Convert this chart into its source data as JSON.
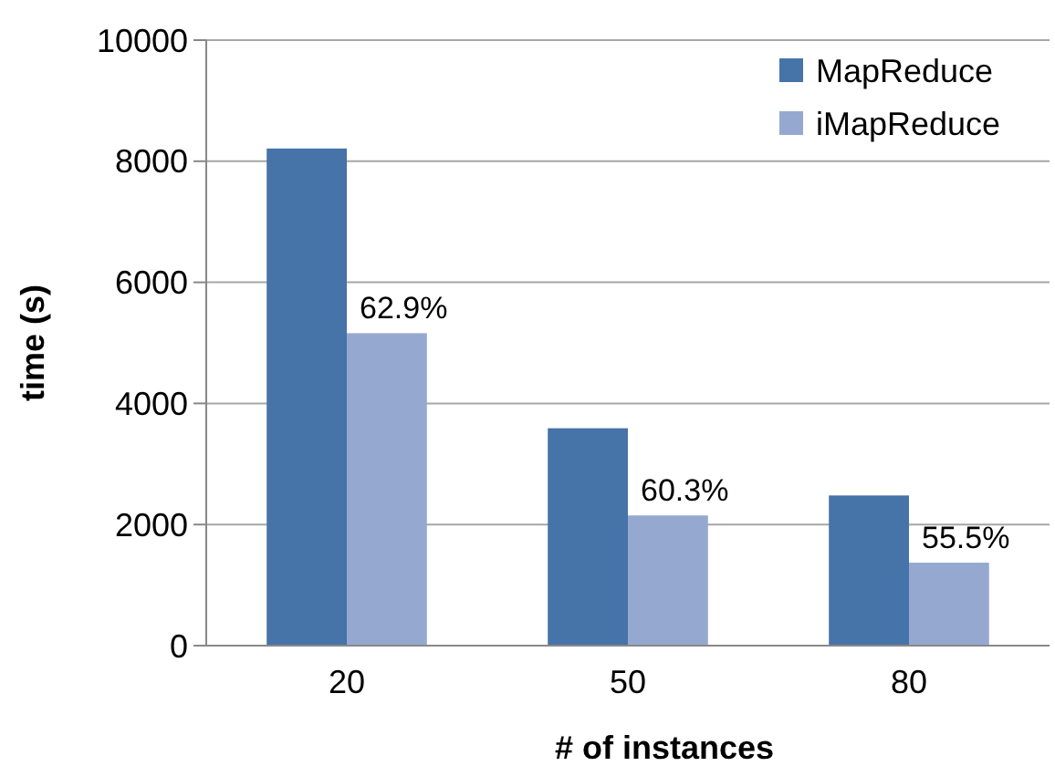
{
  "chart_data": {
    "type": "bar",
    "xlabel": "# of instances",
    "ylabel": "time (s)",
    "categories": [
      "20",
      "50",
      "80"
    ],
    "series": [
      {
        "name": "MapReduce",
        "color": "#4673a8",
        "values": [
          8210,
          3590,
          2480
        ]
      },
      {
        "name": "iMapReduce",
        "color": "#95a9d0",
        "values": [
          5160,
          2150,
          1370
        ]
      }
    ],
    "annotations": [
      {
        "text": "62.9%",
        "x": "20",
        "y": 5160
      },
      {
        "text": "60.3%",
        "x": "50",
        "y": 2150
      },
      {
        "text": "55.5%",
        "x": "80",
        "y": 1370
      }
    ],
    "ylim": [
      0,
      10000
    ],
    "yticks": [
      0,
      2000,
      4000,
      6000,
      8000,
      10000
    ],
    "grid": "y",
    "legend": "top right"
  }
}
